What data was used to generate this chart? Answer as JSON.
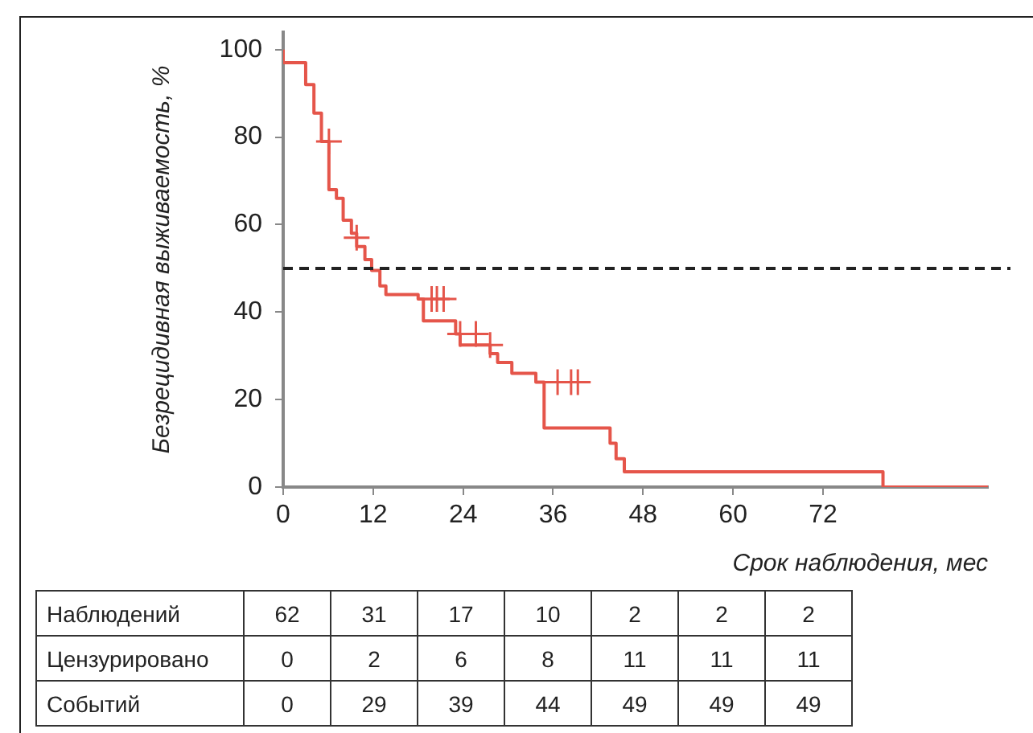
{
  "chart_data": {
    "type": "step",
    "xlabel": "Срок наблюдения, мес",
    "ylabel": "Безрецидивная выживаемость, %",
    "xlim": [
      0,
      94
    ],
    "xticks": [
      0,
      12,
      24,
      36,
      48,
      60,
      72
    ],
    "ylim": [
      0,
      104
    ],
    "yticks": [
      0,
      20,
      40,
      60,
      80,
      100
    ],
    "grid": false,
    "legend": false,
    "series": [
      {
        "type": "step",
        "color": "#e5554a",
        "marker": "none",
        "x": [
          0,
          3,
          4.1,
          5.1,
          6.1,
          7.1,
          8,
          9.1,
          9.8,
          10.9,
          11.8,
          12.9,
          13.7,
          18,
          18.7,
          23,
          23.6,
          27.6,
          28.6,
          30.5,
          33.7,
          34.8,
          43.6,
          44.4,
          45.5,
          80,
          94
        ],
        "values": [
          100,
          97,
          92,
          85.5,
          79,
          68,
          66,
          61,
          58,
          55,
          52,
          49.5,
          46,
          44,
          43,
          38,
          35,
          32.5,
          30.5,
          28.5,
          26,
          24,
          13.5,
          10,
          6.5,
          3.5,
          0
        ]
      },
      {
        "type": "scatter",
        "color": "#e5554a",
        "marker": "cross",
        "x": [
          6.1,
          9.8,
          19.8,
          20.5,
          21.4,
          23.6,
          25.7,
          27.6,
          36.6,
          38.4,
          39.3
        ],
        "values": [
          79,
          57,
          43,
          43,
          43,
          35,
          35,
          32.5,
          24,
          24,
          24
        ]
      }
    ],
    "ref_lines": [
      {
        "axis": "y",
        "value": 50,
        "color": "#222222",
        "line_style": "dashed"
      }
    ],
    "annotations": [
      "Наблюдений",
      "62",
      "31",
      "17",
      "10",
      "2",
      "2",
      "2",
      "Цензурировано",
      "0",
      "2",
      "6",
      "8",
      "11",
      "11",
      "11",
      "Событий",
      "0",
      "29",
      "39",
      "44",
      "49",
      "49",
      "49"
    ]
  }
}
